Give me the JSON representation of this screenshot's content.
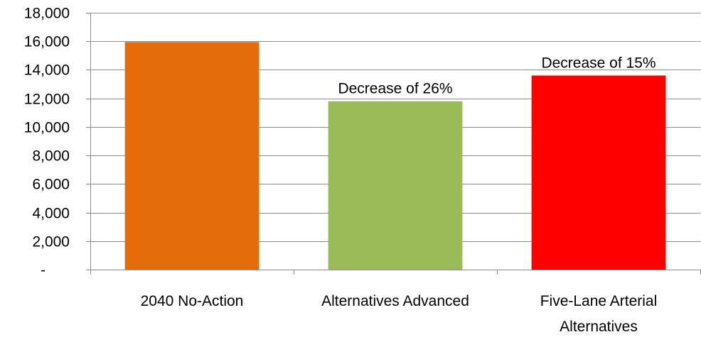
{
  "chart_data": {
    "type": "bar",
    "title": "",
    "xlabel": "",
    "ylabel": "",
    "ylim": [
      0,
      18000
    ],
    "y_ticks": [
      {
        "value": 0,
        "label": "-"
      },
      {
        "value": 2000,
        "label": "2,000"
      },
      {
        "value": 4000,
        "label": "4,000"
      },
      {
        "value": 6000,
        "label": "6,000"
      },
      {
        "value": 8000,
        "label": "8,000"
      },
      {
        "value": 10000,
        "label": "10,000"
      },
      {
        "value": 12000,
        "label": "12,000"
      },
      {
        "value": 14000,
        "label": "14,000"
      },
      {
        "value": 16000,
        "label": "16,000"
      },
      {
        "value": 18000,
        "label": "18,000"
      }
    ],
    "grid": true,
    "legend": "none",
    "categories": [
      [
        "2040 No-Action"
      ],
      [
        "Alternatives Advanced"
      ],
      [
        "Five-Lane Arterial",
        "Alternatives"
      ]
    ],
    "values": [
      15950,
      11800,
      13600
    ],
    "bar_colors": [
      "#E46C0A",
      "#9BBB59",
      "#FF0000"
    ],
    "data_labels": [
      "",
      "Decrease of 26%",
      "Decrease of 15%"
    ]
  }
}
